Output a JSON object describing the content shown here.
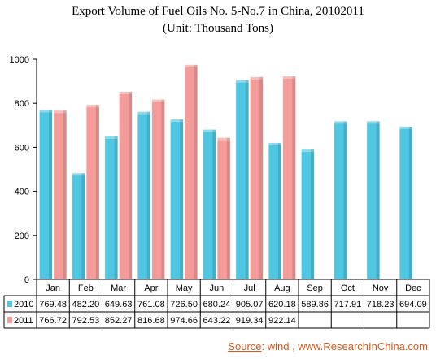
{
  "chart_data": {
    "type": "bar",
    "title": "Export Volume of Fuel Oils No. 5-No.7 in China, 20102011",
    "subtitle": "(Unit: Thousand Tons)",
    "categories": [
      "Jan",
      "Feb",
      "Mar",
      "Apr",
      "May",
      "Jun",
      "Jul",
      "Aug",
      "Sep",
      "Oct",
      "Nov",
      "Dec"
    ],
    "series": [
      {
        "name": "2010",
        "color": "#4fc6e2",
        "values": [
          769.48,
          482.2,
          649.63,
          761.08,
          726.5,
          680.24,
          905.07,
          620.18,
          589.86,
          717.91,
          718.23,
          694.09
        ]
      },
      {
        "name": "2011",
        "color": "#f49c9a",
        "values": [
          766.72,
          792.53,
          852.27,
          816.68,
          974.66,
          643.22,
          919.34,
          922.14,
          null,
          null,
          null,
          null
        ]
      }
    ],
    "series_labels": [
      [
        "769.48",
        "482.20",
        "649.63",
        "761.08",
        "726.50",
        "680.24",
        "905.07",
        "620.18",
        "589.86",
        "717.91",
        "718.23",
        "694.09"
      ],
      [
        "766.72",
        "792.53",
        "852.27",
        "816.68",
        "974.66",
        "643.22",
        "919.34",
        "922.14",
        "",
        "",
        "",
        ""
      ]
    ],
    "ylim": [
      0,
      1000
    ],
    "yticks": [
      0,
      200,
      400,
      600,
      800,
      1000
    ],
    "ytick_labels": [
      "0",
      "200",
      "400",
      "600",
      "800",
      "1000"
    ],
    "grid": false,
    "legend": "data-table"
  },
  "source": {
    "label": "Source",
    "text": ": wind , www.ResearchInChina.com"
  }
}
